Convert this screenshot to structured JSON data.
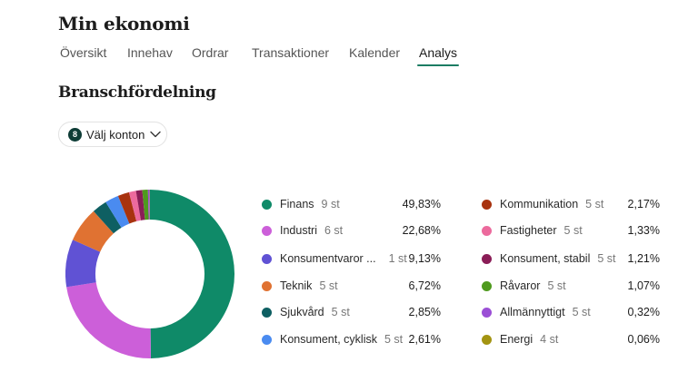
{
  "header": {
    "title": "Min ekonomi"
  },
  "tabs": [
    {
      "label": "Översikt",
      "active": false
    },
    {
      "label": "Innehav",
      "active": false
    },
    {
      "label": "Ordrar",
      "active": false
    },
    {
      "label": "Transaktioner",
      "active": false
    },
    {
      "label": "Kalender",
      "active": false
    },
    {
      "label": "Analys",
      "active": true
    }
  ],
  "section": {
    "title": "Branschfördelning"
  },
  "account_select": {
    "badge_count": "8",
    "label": "Välj konton",
    "icon": "chevron-down-icon"
  },
  "colors": {
    "accent": "#1c7c63",
    "badge": "#0e3c36"
  },
  "chart_data": {
    "type": "pie",
    "subtype": "donut",
    "title": "Branschfördelning",
    "start_angle": "12 o'clock",
    "direction": "clockwise",
    "categories": [
      "Finans",
      "Industri",
      "Konsumentvaror ...",
      "Teknik",
      "Sjukvård",
      "Konsument, cyklisk",
      "Kommunikation",
      "Fastigheter",
      "Konsument, stabil",
      "Råvaror",
      "Allmännyttigt",
      "Energi"
    ],
    "values": [
      49.83,
      22.68,
      9.13,
      6.72,
      2.85,
      2.61,
      2.17,
      1.33,
      1.21,
      1.07,
      0.32,
      0.06
    ],
    "counts": [
      9,
      6,
      1,
      5,
      5,
      5,
      5,
      5,
      5,
      5,
      5,
      4
    ],
    "colors": [
      "#0f8a68",
      "#cc5fd9",
      "#6052d4",
      "#e07232",
      "#0e5f62",
      "#4a8bf0",
      "#a8330f",
      "#ec6a9d",
      "#8a1d57",
      "#4f9a1e",
      "#9b4fd6",
      "#a39412"
    ],
    "legend_position": "right"
  },
  "legend": [
    {
      "name": "Finans",
      "count": "9 st",
      "pct": "49,83%",
      "color": "#0f8a68"
    },
    {
      "name": "Industri",
      "count": "6 st",
      "pct": "22,68%",
      "color": "#cc5fd9"
    },
    {
      "name": "Konsumentvaror ...",
      "count": "1 st",
      "pct": "9,13%",
      "color": "#6052d4"
    },
    {
      "name": "Teknik",
      "count": "5 st",
      "pct": "6,72%",
      "color": "#e07232"
    },
    {
      "name": "Sjukvård",
      "count": "5 st",
      "pct": "2,85%",
      "color": "#0e5f62"
    },
    {
      "name": "Konsument, cyklisk",
      "count": "5 st",
      "pct": "2,61%",
      "color": "#4a8bf0"
    },
    {
      "name": "Kommunikation",
      "count": "5 st",
      "pct": "2,17%",
      "color": "#a8330f"
    },
    {
      "name": "Fastigheter",
      "count": "5 st",
      "pct": "1,33%",
      "color": "#ec6a9d"
    },
    {
      "name": "Konsument, stabil",
      "count": "5 st",
      "pct": "1,21%",
      "color": "#8a1d57"
    },
    {
      "name": "Råvaror",
      "count": "5 st",
      "pct": "1,07%",
      "color": "#4f9a1e"
    },
    {
      "name": "Allmännyttigt",
      "count": "5 st",
      "pct": "0,32%",
      "color": "#9b4fd6"
    },
    {
      "name": "Energi",
      "count": "4 st",
      "pct": "0,06%",
      "color": "#a39412"
    }
  ]
}
